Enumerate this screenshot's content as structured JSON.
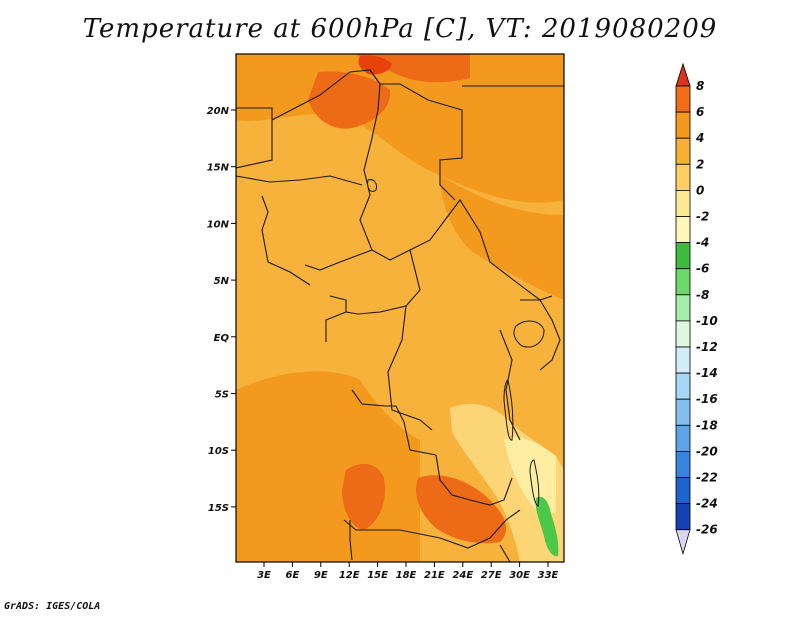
{
  "title": "Temperature at 600hPa [C], VT: 2019080209",
  "credit": "GrADS: IGES/COLA",
  "map": {
    "variable": "Temperature",
    "level": "600hPa",
    "units": "C",
    "valid_time": "2019080209",
    "lat_labels": [
      "20N",
      "15N",
      "10N",
      "5N",
      "EQ",
      "5S",
      "10S",
      "15S"
    ],
    "lon_labels": [
      "3E",
      "6E",
      "9E",
      "12E",
      "15E",
      "18E",
      "21E",
      "24E",
      "27E",
      "30E",
      "33E"
    ],
    "fill_colors": {
      "base": "#f6b23a",
      "warm": "#f39a1e",
      "hot": "#ed6a16",
      "hottest": "#e8420c",
      "cool": "#fcd577",
      "cooler": "#fdeda0",
      "green": "#4cc848",
      "border": "#1a1a1a",
      "frame": "#000000"
    }
  },
  "colorbar": {
    "labels": [
      "8",
      "6",
      "4",
      "2",
      "0",
      "-2",
      "-4",
      "-6",
      "-8",
      "-10",
      "-12",
      "-14",
      "-16",
      "-18",
      "-20",
      "-22",
      "-24",
      "-26"
    ],
    "colors": [
      "#ee4310",
      "#f26d17",
      "#f5981e",
      "#f7b031",
      "#fbcf63",
      "#fde993",
      "#fdf8b7",
      "#3cbc3c",
      "#6ed86a",
      "#a6ecaa",
      "#ddf8df",
      "#d3ecfa",
      "#a7d6f6",
      "#83c0ef",
      "#5ca4e7",
      "#3a84df",
      "#1e62ce",
      "#1541b3",
      "#0b2488",
      "#0a0e5c"
    ],
    "top_arrow_color": "#d8341a",
    "bottom_arrow_color": "#dcd6f2"
  }
}
